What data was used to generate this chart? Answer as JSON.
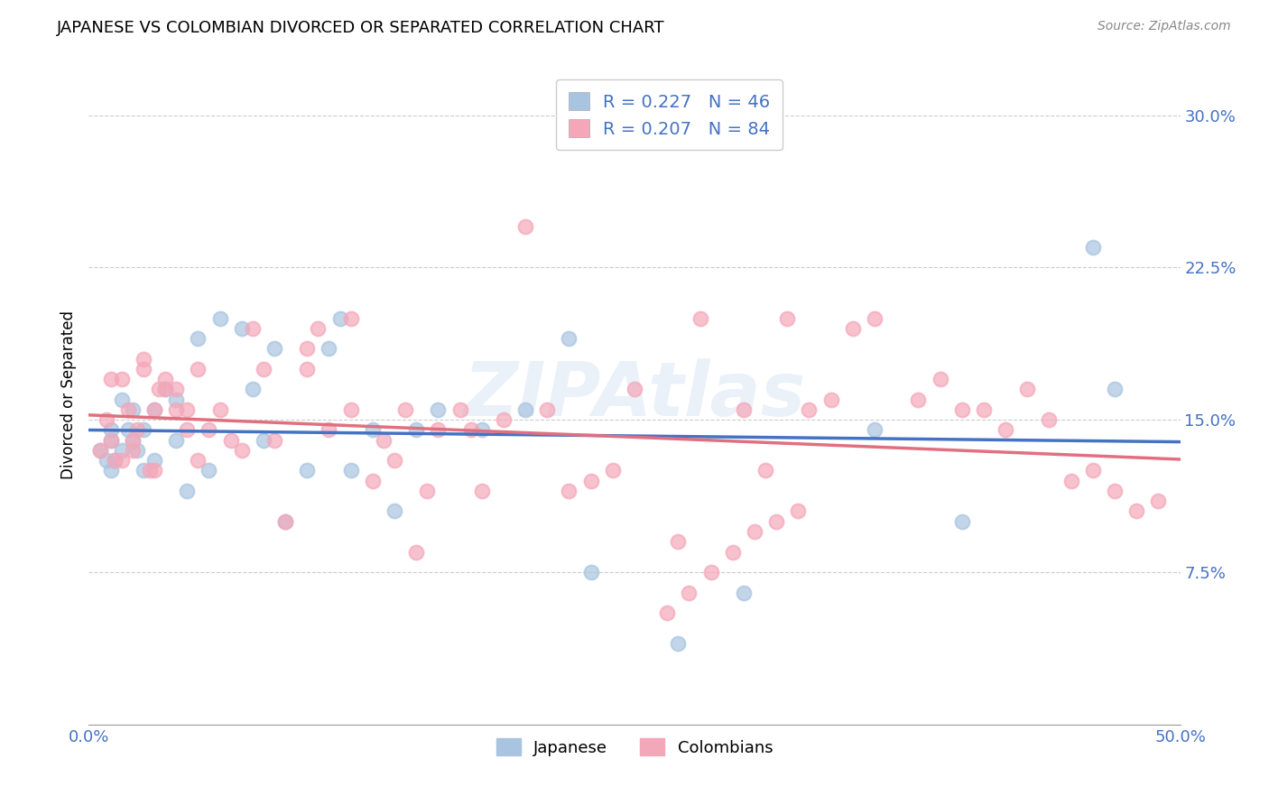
{
  "title": "JAPANESE VS COLOMBIAN DIVORCED OR SEPARATED CORRELATION CHART",
  "source": "Source: ZipAtlas.com",
  "ylabel": "Divorced or Separated",
  "xlim": [
    0.0,
    0.5
  ],
  "ylim": [
    0.0,
    0.325
  ],
  "xtick_positions": [
    0.0,
    0.1,
    0.2,
    0.3,
    0.4,
    0.5
  ],
  "xticklabels": [
    "0.0%",
    "",
    "",
    "",
    "",
    "50.0%"
  ],
  "ytick_positions": [
    0.075,
    0.15,
    0.225,
    0.3
  ],
  "yticklabels": [
    "7.5%",
    "15.0%",
    "22.5%",
    "30.0%"
  ],
  "japanese_color": "#a8c4e0",
  "colombian_color": "#f4a7b9",
  "trend_japanese_color": "#4472c4",
  "trend_colombian_color": "#e07080",
  "tick_color": "#4472c4",
  "legend_label_japanese": "R = 0.227   N = 46",
  "legend_label_colombian": "R = 0.207   N = 84",
  "bottom_legend_japanese": "Japanese",
  "bottom_legend_colombian": "Colombians",
  "watermark": "ZIPAtlas",
  "japanese_x": [
    0.005,
    0.008,
    0.01,
    0.01,
    0.01,
    0.012,
    0.015,
    0.015,
    0.018,
    0.02,
    0.02,
    0.022,
    0.025,
    0.025,
    0.03,
    0.03,
    0.035,
    0.04,
    0.04,
    0.045,
    0.05,
    0.055,
    0.06,
    0.07,
    0.075,
    0.08,
    0.085,
    0.09,
    0.1,
    0.11,
    0.115,
    0.12,
    0.13,
    0.14,
    0.15,
    0.16,
    0.18,
    0.2,
    0.22,
    0.23,
    0.27,
    0.3,
    0.36,
    0.4,
    0.46,
    0.47
  ],
  "japanese_y": [
    0.135,
    0.13,
    0.14,
    0.125,
    0.145,
    0.13,
    0.135,
    0.16,
    0.145,
    0.14,
    0.155,
    0.135,
    0.145,
    0.125,
    0.13,
    0.155,
    0.165,
    0.14,
    0.16,
    0.115,
    0.19,
    0.125,
    0.2,
    0.195,
    0.165,
    0.14,
    0.185,
    0.1,
    0.125,
    0.185,
    0.2,
    0.125,
    0.145,
    0.105,
    0.145,
    0.155,
    0.145,
    0.155,
    0.19,
    0.075,
    0.04,
    0.065,
    0.145,
    0.1,
    0.235,
    0.165
  ],
  "colombian_x": [
    0.005,
    0.008,
    0.01,
    0.01,
    0.012,
    0.015,
    0.015,
    0.018,
    0.02,
    0.02,
    0.022,
    0.025,
    0.025,
    0.028,
    0.03,
    0.03,
    0.032,
    0.035,
    0.035,
    0.04,
    0.04,
    0.045,
    0.045,
    0.05,
    0.05,
    0.055,
    0.06,
    0.065,
    0.07,
    0.075,
    0.08,
    0.085,
    0.09,
    0.1,
    0.1,
    0.105,
    0.11,
    0.12,
    0.12,
    0.13,
    0.135,
    0.14,
    0.145,
    0.15,
    0.155,
    0.16,
    0.17,
    0.175,
    0.18,
    0.19,
    0.2,
    0.21,
    0.22,
    0.23,
    0.24,
    0.25,
    0.27,
    0.28,
    0.3,
    0.31,
    0.32,
    0.33,
    0.34,
    0.35,
    0.36,
    0.38,
    0.39,
    0.4,
    0.41,
    0.42,
    0.43,
    0.44,
    0.45,
    0.46,
    0.47,
    0.48,
    0.49,
    0.295,
    0.305,
    0.315,
    0.325,
    0.285,
    0.275,
    0.265
  ],
  "colombian_y": [
    0.135,
    0.15,
    0.14,
    0.17,
    0.13,
    0.17,
    0.13,
    0.155,
    0.135,
    0.14,
    0.145,
    0.175,
    0.18,
    0.125,
    0.155,
    0.125,
    0.165,
    0.17,
    0.165,
    0.155,
    0.165,
    0.155,
    0.145,
    0.175,
    0.13,
    0.145,
    0.155,
    0.14,
    0.135,
    0.195,
    0.175,
    0.14,
    0.1,
    0.185,
    0.175,
    0.195,
    0.145,
    0.2,
    0.155,
    0.12,
    0.14,
    0.13,
    0.155,
    0.085,
    0.115,
    0.145,
    0.155,
    0.145,
    0.115,
    0.15,
    0.245,
    0.155,
    0.115,
    0.12,
    0.125,
    0.165,
    0.09,
    0.2,
    0.155,
    0.125,
    0.2,
    0.155,
    0.16,
    0.195,
    0.2,
    0.16,
    0.17,
    0.155,
    0.155,
    0.145,
    0.165,
    0.15,
    0.12,
    0.125,
    0.115,
    0.105,
    0.11,
    0.085,
    0.095,
    0.1,
    0.105,
    0.075,
    0.065,
    0.055
  ]
}
